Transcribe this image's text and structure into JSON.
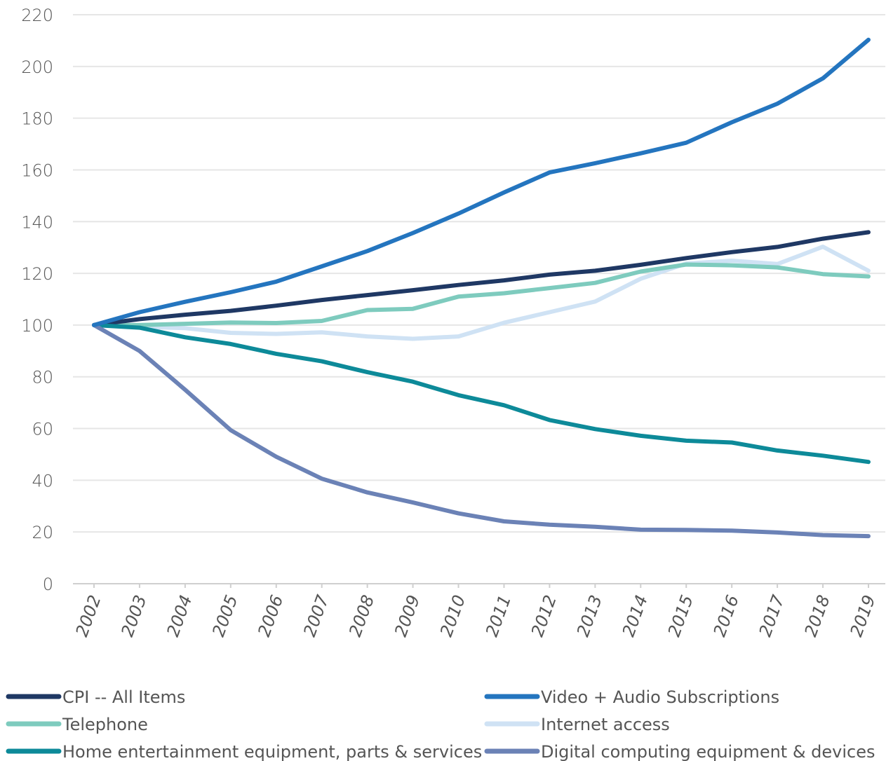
{
  "chart_data": {
    "type": "line",
    "title": "",
    "xlabel": "",
    "ylabel": "",
    "x": [
      "2002",
      "2003",
      "2004",
      "2005",
      "2006",
      "2007",
      "2008",
      "2009",
      "2010",
      "2011",
      "2012",
      "2013",
      "2014",
      "2015",
      "2016",
      "2017",
      "2018",
      "2019"
    ],
    "ylim": [
      0,
      220
    ],
    "yticks": [
      "0",
      "20",
      "40",
      "60",
      "80",
      "100",
      "120",
      "140",
      "160",
      "180",
      "200",
      "220"
    ],
    "grid": "horizontal",
    "legend_position": "bottom",
    "series": [
      {
        "name": "CPI -- All Items",
        "color": "#1f3864",
        "values": [
          100,
          102.3,
          104.0,
          105.5,
          107.5,
          109.7,
          111.6,
          113.5,
          115.5,
          117.3,
          119.5,
          121.0,
          123.3,
          125.9,
          128.2,
          130.2,
          133.4,
          135.9
        ]
      },
      {
        "name": "Video + Audio Subscriptions",
        "color": "#2475bf",
        "values": [
          100,
          105.0,
          109.0,
          112.7,
          116.8,
          122.7,
          128.6,
          135.6,
          143.1,
          151.3,
          159.0,
          162.6,
          166.4,
          170.5,
          178.4,
          185.6,
          195.4,
          210.3
        ]
      },
      {
        "name": "Telephone",
        "color": "#7ecbbe",
        "values": [
          100,
          100.0,
          100.5,
          101.0,
          100.8,
          101.6,
          105.8,
          106.3,
          111.0,
          112.3,
          114.3,
          116.3,
          120.7,
          123.4,
          123.1,
          122.3,
          119.7,
          118.8
        ]
      },
      {
        "name": "Internet access",
        "color": "#cfe2f4",
        "values": [
          100,
          99.3,
          98.8,
          97.0,
          96.6,
          97.2,
          95.6,
          94.7,
          95.6,
          100.9,
          105.0,
          109.1,
          117.9,
          123.8,
          124.9,
          123.6,
          130.3,
          121.0
        ]
      },
      {
        "name": "Home entertainment equipment, parts & services",
        "color": "#0d8a99",
        "values": [
          100,
          99.0,
          95.3,
          92.7,
          88.9,
          86.0,
          81.8,
          78.1,
          72.9,
          69.0,
          63.3,
          59.8,
          57.2,
          55.3,
          54.6,
          51.5,
          49.5,
          47.1
        ]
      },
      {
        "name": "Digital computing equipment & devices",
        "color": "#6b82b6",
        "values": [
          100,
          90.0,
          75.0,
          59.4,
          49.1,
          40.6,
          35.3,
          31.4,
          27.2,
          24.1,
          22.8,
          22.0,
          20.9,
          20.8,
          20.5,
          19.8,
          18.8,
          18.4
        ]
      }
    ]
  }
}
